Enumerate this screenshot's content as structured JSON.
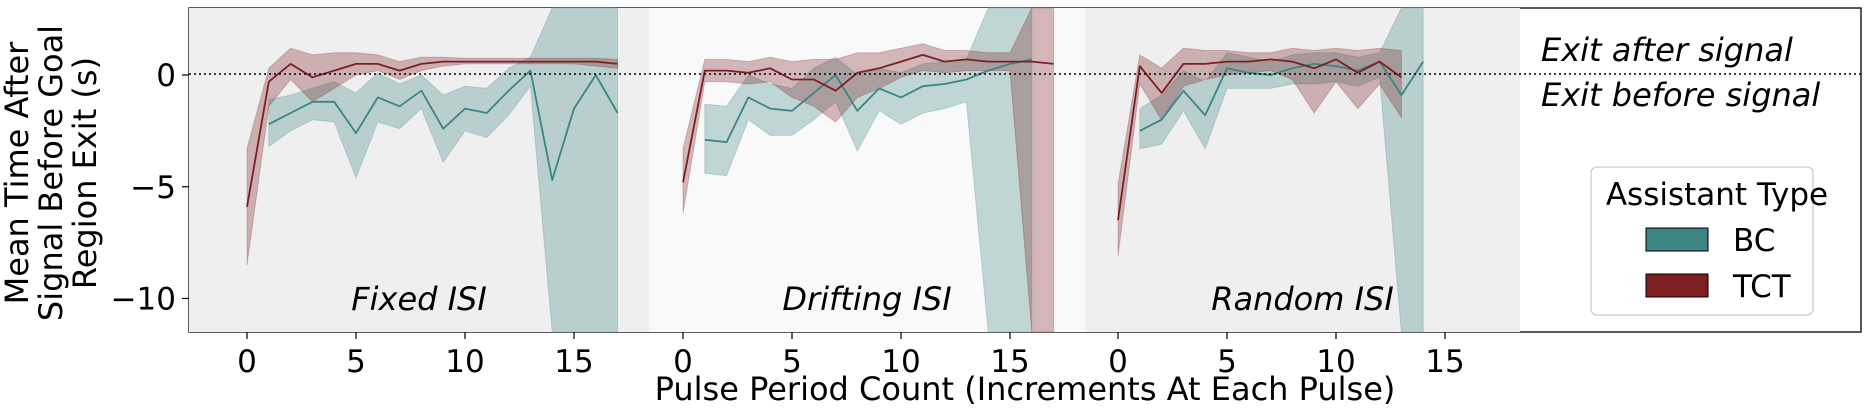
{
  "chart_data": {
    "type": "line",
    "xlabel": "Pulse Period Count (Increments At Each Pulse)",
    "ylabel_lines": [
      "Mean Time After",
      "Signal Before Goal",
      "Region Exit (s)"
    ],
    "ylim": [
      -11.5,
      3
    ],
    "y_ticks": [
      0,
      -5,
      -10
    ],
    "y_tick_labels": [
      "0",
      "−5",
      "−10"
    ],
    "x_ticks": [
      0,
      5,
      10,
      15
    ],
    "x_tick_labels": [
      "0",
      "5",
      "10",
      "15"
    ],
    "grid": false,
    "reference_line": {
      "y": 0,
      "style": "dotted"
    },
    "annotations": {
      "above": "Exit after signal",
      "below": "Exit before signal"
    },
    "legend": {
      "title": "Assistant Type",
      "placement": "right",
      "entries": [
        {
          "label": "BC",
          "color": "#3b8582"
        },
        {
          "label": "TCT",
          "color": "#7c1f22"
        }
      ]
    },
    "panels": [
      {
        "label": "Fixed ISI",
        "shade": "#efefef",
        "series": [
          {
            "name": "BC",
            "color": "#3b8582",
            "x": [
              1,
              2,
              3,
              4,
              5,
              6,
              7,
              8,
              9,
              10,
              11,
              12,
              13,
              14,
              15,
              16,
              17
            ],
            "y": [
              -2.2,
              -1.7,
              -1.2,
              -1.2,
              -2.6,
              -1.0,
              -1.4,
              -0.7,
              -2.4,
              -1.5,
              -1.7,
              -0.7,
              0.2,
              -4.7,
              -1.5,
              0.0,
              -1.7
            ],
            "lower": [
              -3.2,
              -2.5,
              -2.0,
              -2.1,
              -4.6,
              -2.1,
              -2.4,
              -1.5,
              -3.9,
              -2.5,
              -2.8,
              -1.8,
              -0.5,
              -11.5,
              -11.5,
              -11.5,
              -11.5
            ],
            "upper": [
              -1.1,
              -0.9,
              -0.6,
              -0.3,
              -0.8,
              0.1,
              -0.4,
              0.0,
              -0.9,
              -0.5,
              -0.6,
              0.3,
              0.8,
              3.0,
              3.0,
              3.0,
              3.0
            ]
          },
          {
            "name": "TCT",
            "color": "#7c1f22",
            "x": [
              0,
              1,
              2,
              3,
              4,
              5,
              6,
              7,
              8,
              9,
              10,
              11,
              12,
              13,
              14,
              15,
              16,
              17
            ],
            "y": [
              -5.9,
              -0.3,
              0.5,
              -0.1,
              0.2,
              0.5,
              0.5,
              0.2,
              0.5,
              0.6,
              0.6,
              0.6,
              0.6,
              0.6,
              0.6,
              0.6,
              0.6,
              0.5
            ],
            "lower": [
              -8.5,
              -1.4,
              -0.2,
              -1.2,
              -0.6,
              0.0,
              0.2,
              -0.2,
              0.2,
              0.4,
              0.5,
              0.5,
              0.5,
              0.5,
              0.5,
              0.5,
              0.4,
              0.3
            ],
            "upper": [
              -3.3,
              0.3,
              1.2,
              0.9,
              1.0,
              1.0,
              0.9,
              0.6,
              0.8,
              0.8,
              0.75,
              0.75,
              0.75,
              0.75,
              0.75,
              0.75,
              0.75,
              0.7
            ]
          }
        ]
      },
      {
        "label": "Drifting ISI",
        "shade": "#f9f9f9",
        "series": [
          {
            "name": "BC",
            "color": "#3b8582",
            "x": [
              1,
              2,
              3,
              4,
              5,
              6,
              7,
              8,
              9,
              10,
              11,
              12,
              13,
              14,
              15,
              16
            ],
            "y": [
              -2.9,
              -3.0,
              -1.0,
              -1.5,
              -1.6,
              -0.8,
              0.0,
              -1.6,
              -0.6,
              -1.0,
              -0.5,
              -0.4,
              -0.2,
              0.2,
              0.5,
              0.7
            ],
            "lower": [
              -4.4,
              -4.5,
              -2.0,
              -2.7,
              -2.7,
              -2.0,
              -1.2,
              -3.4,
              -1.6,
              -2.2,
              -1.7,
              -1.5,
              -1.2,
              -11.5,
              -11.5,
              -11.5
            ],
            "upper": [
              -1.3,
              -1.4,
              0.0,
              -0.4,
              -0.6,
              0.3,
              0.8,
              0.0,
              0.3,
              0.1,
              0.5,
              0.6,
              0.7,
              3.0,
              3.0,
              3.0
            ]
          },
          {
            "name": "TCT",
            "color": "#7c1f22",
            "x": [
              0,
              1,
              2,
              3,
              4,
              5,
              6,
              7,
              8,
              9,
              10,
              11,
              12,
              13,
              14,
              15,
              16,
              17
            ],
            "y": [
              -4.8,
              0.2,
              0.2,
              0.1,
              0.3,
              -0.2,
              -0.2,
              -0.7,
              0.1,
              0.3,
              0.6,
              0.9,
              0.6,
              0.7,
              0.6,
              0.6,
              0.6,
              0.5
            ],
            "lower": [
              -6.2,
              -0.3,
              -0.3,
              -0.4,
              -0.3,
              -1.0,
              -1.4,
              -2.1,
              -1.0,
              -0.6,
              -0.1,
              0.2,
              0.1,
              0.2,
              0.2,
              0.2,
              -11.5,
              -11.5
            ],
            "upper": [
              -3.3,
              0.7,
              0.7,
              0.6,
              0.8,
              0.6,
              0.7,
              0.7,
              1.0,
              1.0,
              1.2,
              1.4,
              1.1,
              1.1,
              1.0,
              1.0,
              3.0,
              3.0
            ]
          }
        ]
      },
      {
        "label": "Random ISI",
        "shade": "#efefef",
        "series": [
          {
            "name": "BC",
            "color": "#3b8582",
            "x": [
              1,
              2,
              3,
              4,
              5,
              6,
              7,
              8,
              9,
              10,
              11,
              12,
              13,
              14
            ],
            "y": [
              -2.5,
              -2.0,
              -0.7,
              -1.8,
              0.3,
              0.1,
              0.0,
              0.3,
              0.5,
              0.4,
              0.2,
              0.6,
              -0.9,
              0.6
            ],
            "lower": [
              -3.3,
              -3.1,
              -1.6,
              -3.3,
              -0.6,
              -0.6,
              -0.6,
              -0.4,
              -0.4,
              -0.3,
              -0.5,
              -0.1,
              -11.5,
              -11.5
            ],
            "upper": [
              -1.5,
              -0.9,
              0.2,
              -0.3,
              1.0,
              0.8,
              0.6,
              0.9,
              1.0,
              1.0,
              0.8,
              1.0,
              3.0,
              3.0
            ]
          },
          {
            "name": "TCT",
            "color": "#7c1f22",
            "x": [
              0,
              1,
              2,
              3,
              4,
              5,
              6,
              7,
              8,
              9,
              10,
              11,
              12,
              13
            ],
            "y": [
              -6.5,
              0.4,
              -0.8,
              0.5,
              0.5,
              0.6,
              0.6,
              0.7,
              0.6,
              0.3,
              0.7,
              0.1,
              0.6,
              -0.1
            ],
            "lower": [
              -8.1,
              -0.4,
              -2.0,
              -0.5,
              -0.2,
              0.0,
              0.1,
              0.2,
              -0.2,
              -1.7,
              -0.3,
              -1.5,
              -0.4,
              -1.9
            ],
            "upper": [
              -4.9,
              0.9,
              0.3,
              1.2,
              1.1,
              1.1,
              1.0,
              1.0,
              1.2,
              1.1,
              1.2,
              1.1,
              1.2,
              1.1
            ]
          }
        ]
      }
    ]
  }
}
